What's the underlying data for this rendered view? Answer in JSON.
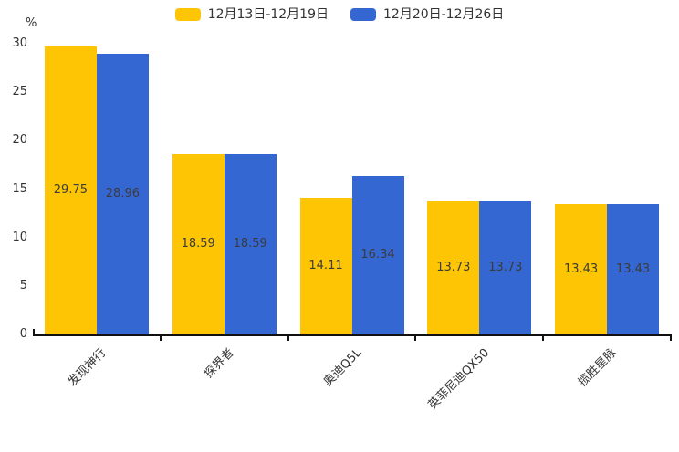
{
  "chart_data": {
    "type": "bar",
    "title": "",
    "unit_label": "%",
    "categories": [
      "发现神行",
      "探界者",
      "奥迪Q5L",
      "英菲尼迪QX50",
      "揽胜星脉"
    ],
    "series": [
      {
        "name": "12月13日-12月19日",
        "color": "#FDC504",
        "values": [
          29.75,
          18.59,
          14.11,
          13.73,
          13.43
        ]
      },
      {
        "name": "12月20日-12月26日",
        "color": "#3467D2",
        "values": [
          28.96,
          18.59,
          16.34,
          13.73,
          13.43
        ]
      }
    ],
    "ylim": [
      0,
      30
    ],
    "yticks": [
      0,
      5,
      10,
      15,
      20,
      25,
      30
    ],
    "legend_position": "top-center",
    "grid": false,
    "value_labels_inside_bars": true,
    "axis_color": "#111111",
    "text_color": "#333333"
  }
}
